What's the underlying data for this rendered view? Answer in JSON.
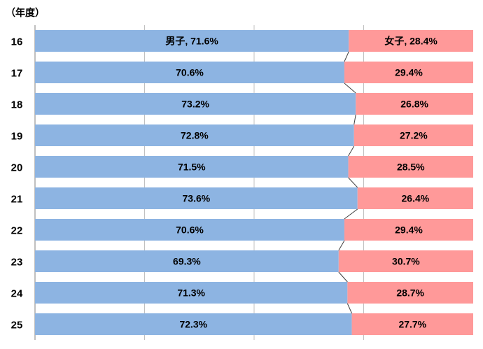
{
  "chart_data": {
    "type": "bar",
    "orientation": "horizontal",
    "stacked": true,
    "percent_stacked": true,
    "unit_label": "（年度）",
    "categories": [
      "16",
      "17",
      "18",
      "19",
      "20",
      "21",
      "22",
      "23",
      "24",
      "25"
    ],
    "series": [
      {
        "name": "男子",
        "color": "#8db4e2",
        "values": [
          71.6,
          70.6,
          73.2,
          72.8,
          71.5,
          73.6,
          70.6,
          69.3,
          71.3,
          72.3
        ],
        "labels": [
          "男子, 71.6%",
          "70.6%",
          "73.2%",
          "72.8%",
          "71.5%",
          "73.6%",
          "70.6%",
          "69.3%",
          "71.3%",
          "72.3%"
        ]
      },
      {
        "name": "女子",
        "color": "#ff9999",
        "values": [
          28.4,
          29.4,
          26.8,
          27.2,
          28.5,
          26.4,
          29.4,
          30.7,
          28.7,
          27.7
        ],
        "labels": [
          "女子, 28.4%",
          "29.4%",
          "26.8%",
          "27.2%",
          "28.5%",
          "26.4%",
          "29.4%",
          "30.7%",
          "28.7%",
          "27.7%"
        ]
      }
    ],
    "xlim": [
      0,
      100
    ],
    "grid": true,
    "series_lines": true,
    "legend": "none"
  }
}
